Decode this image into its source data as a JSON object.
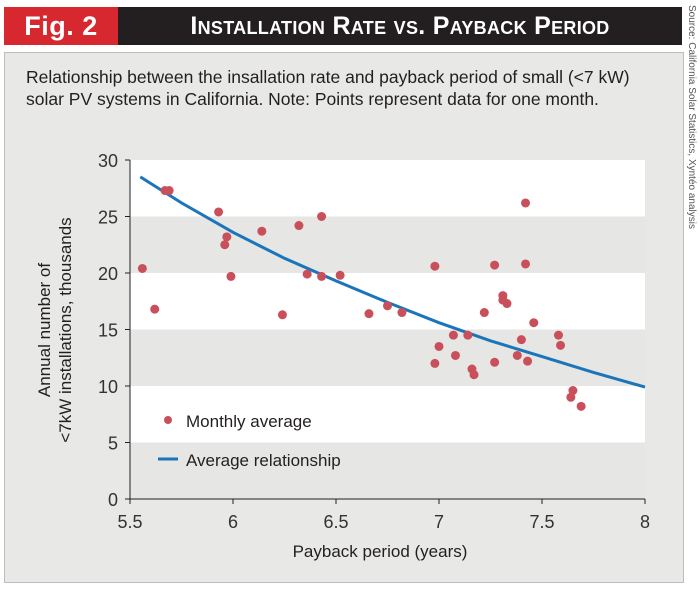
{
  "header": {
    "fig_label": "Fig. 2",
    "title": "Installation Rate vs. Payback Period"
  },
  "source": "Source: California Solar Statistics, Xyntéo analysis",
  "caption": "Relationship between the insallation rate and payback period of small (<7 kW) solar PV systems in California. Note: Points represent data for one month.",
  "colors": {
    "point": "#c9505a",
    "line": "#1a75bb",
    "band": "#e6e6e4",
    "header_red": "#d7282f",
    "header_black": "#231f20"
  },
  "chart_data": {
    "type": "scatter",
    "xlabel": "Payback period (years)",
    "ylabel_line1": "Annual number of",
    "ylabel_line2": "<7kW installations, thousands",
    "xlim": [
      5.5,
      8
    ],
    "ylim": [
      0,
      30
    ],
    "xticks": [
      "5.5",
      "6",
      "6.5",
      "7",
      "7.5",
      "8"
    ],
    "yticks": [
      "0",
      "5",
      "10",
      "15",
      "20",
      "25",
      "30"
    ],
    "legend": {
      "placement": "bottom-left",
      "entries": [
        "Monthly average",
        "Average relationship"
      ]
    },
    "series": [
      {
        "name": "Monthly average",
        "type": "scatter",
        "points": [
          [
            5.56,
            20.4
          ],
          [
            5.62,
            16.8
          ],
          [
            5.67,
            27.3
          ],
          [
            5.69,
            27.3
          ],
          [
            5.93,
            25.4
          ],
          [
            5.96,
            22.5
          ],
          [
            5.97,
            23.2
          ],
          [
            5.99,
            19.7
          ],
          [
            6.14,
            23.7
          ],
          [
            6.24,
            16.3
          ],
          [
            6.32,
            24.2
          ],
          [
            6.36,
            19.9
          ],
          [
            6.43,
            25.0
          ],
          [
            6.43,
            19.7
          ],
          [
            6.52,
            19.8
          ],
          [
            6.66,
            16.4
          ],
          [
            6.75,
            17.1
          ],
          [
            6.82,
            16.5
          ],
          [
            6.98,
            20.6
          ],
          [
            6.98,
            12.0
          ],
          [
            7.0,
            13.5
          ],
          [
            7.07,
            14.5
          ],
          [
            7.08,
            12.7
          ],
          [
            7.14,
            14.5
          ],
          [
            7.16,
            11.5
          ],
          [
            7.17,
            11.0
          ],
          [
            7.22,
            16.5
          ],
          [
            7.27,
            20.7
          ],
          [
            7.27,
            12.1
          ],
          [
            7.31,
            18.0
          ],
          [
            7.31,
            17.6
          ],
          [
            7.33,
            17.3
          ],
          [
            7.38,
            12.7
          ],
          [
            7.4,
            14.1
          ],
          [
            7.42,
            26.2
          ],
          [
            7.42,
            20.8
          ],
          [
            7.43,
            12.2
          ],
          [
            7.46,
            15.6
          ],
          [
            7.58,
            14.5
          ],
          [
            7.59,
            13.6
          ],
          [
            7.65,
            9.6
          ],
          [
            7.64,
            9.0
          ],
          [
            7.69,
            8.2
          ]
        ]
      },
      {
        "name": "Average relationship",
        "type": "line",
        "points": [
          [
            5.55,
            28.5
          ],
          [
            5.75,
            26.2
          ],
          [
            6.0,
            23.6
          ],
          [
            6.25,
            21.3
          ],
          [
            6.5,
            19.3
          ],
          [
            6.75,
            17.4
          ],
          [
            7.0,
            15.6
          ],
          [
            7.25,
            14.0
          ],
          [
            7.5,
            12.6
          ],
          [
            7.75,
            11.2
          ],
          [
            8.0,
            9.9
          ]
        ]
      }
    ]
  }
}
